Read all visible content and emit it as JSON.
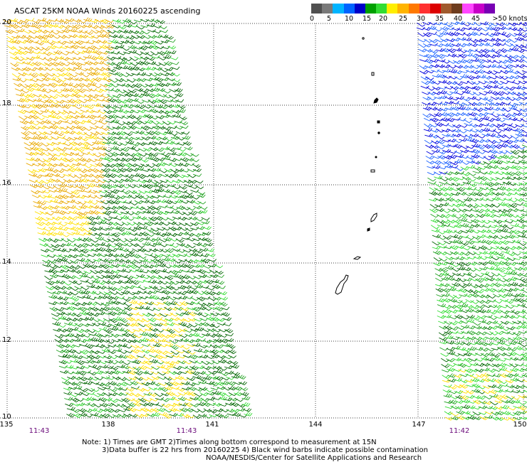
{
  "title": "ASCAT 25KM NOAA Winds 20160225 ascending",
  "legend": {
    "labels": [
      "0",
      "5",
      "10",
      "15",
      "20",
      "25",
      "30",
      "35",
      "40",
      "45",
      ">50 knots"
    ],
    "colors": [
      "#505050",
      "#7a7a7a",
      "#00b4ff",
      "#0064ff",
      "#0000c8",
      "#00a000",
      "#32dc32",
      "#ffee00",
      "#ffb400",
      "#ff7800",
      "#ff3030",
      "#dc0000",
      "#a05a2d",
      "#6e3c1e",
      "#ff46ff",
      "#c800c8",
      "#7800b4"
    ]
  },
  "lat_labels": [
    "20",
    "18",
    "16",
    "14",
    "12",
    "10"
  ],
  "lon_labels": [
    "135",
    "138",
    "141",
    "144",
    "147",
    "150"
  ],
  "time_labels": [
    "11:43",
    "11:43",
    "11:42"
  ],
  "notes": {
    "line1": "Note: 1) Times are GMT 2)Times along bottom correspond to measurement at 15N",
    "line2": "3)Data buffer is 22 hrs from 20160225 4) Black wind barbs indicate possible contamination",
    "credit": "NOAA/NESDIS/Center for Satellite Applications and Research"
  },
  "barb_colors": {
    "orange": "#e8a800",
    "yellow": "#ffe000",
    "dark_green": "#006400",
    "green": "#1ea01e",
    "light_green": "#32dc32",
    "blue": "#0000dc",
    "light_blue": "#1e64ff"
  }
}
